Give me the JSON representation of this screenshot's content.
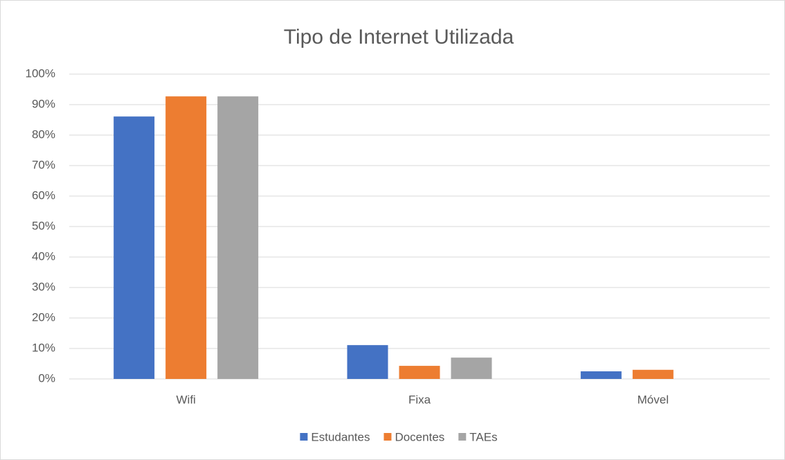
{
  "chart_data": {
    "type": "bar",
    "title": "Tipo de Internet Utilizada",
    "categories": [
      "Wifi",
      "Fixa",
      "Móvel"
    ],
    "series": [
      {
        "name": "Estudantes",
        "color": "#4472c4",
        "values": [
          86.1,
          11.1,
          2.5
        ]
      },
      {
        "name": "Docentes",
        "color": "#ed7d31",
        "values": [
          92.7,
          4.3,
          3.0
        ]
      },
      {
        "name": "TAEs",
        "color": "#a5a5a5",
        "values": [
          92.7,
          7.0,
          0
        ]
      }
    ],
    "ylim": [
      0,
      100
    ],
    "yticks": [
      {
        "value": 0,
        "label": "0%"
      },
      {
        "value": 10,
        "label": "10%"
      },
      {
        "value": 20,
        "label": "20%"
      },
      {
        "value": 30,
        "label": "30%"
      },
      {
        "value": 40,
        "label": "40%"
      },
      {
        "value": 50,
        "label": "50%"
      },
      {
        "value": 60,
        "label": "60%"
      },
      {
        "value": 70,
        "label": "70%"
      },
      {
        "value": 80,
        "label": "80%"
      },
      {
        "value": 90,
        "label": "90%"
      },
      {
        "value": 100,
        "label": "100%"
      }
    ],
    "grid": true,
    "legend": "bottom"
  }
}
